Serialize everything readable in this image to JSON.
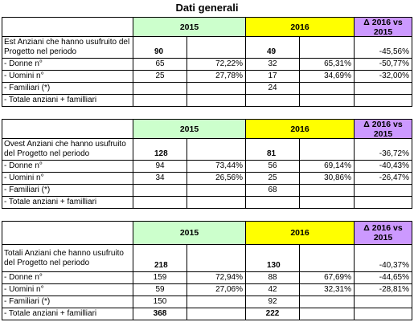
{
  "title": "Dati generali",
  "blocks": [
    {
      "header": {
        "y2015": "2015",
        "y2016": "2016",
        "delta": "Δ 2016 vs 2015"
      },
      "rows": [
        {
          "label": "Est Anziani che hanno usufruito del Progetto nel periodo",
          "v2015": "90",
          "v2016": "49",
          "delta": "-45,56%"
        },
        {
          "label": "- Donne n°",
          "v2015": "65",
          "p2015": "72,22%",
          "v2016": "32",
          "p2016": "65,31%",
          "delta": "-50,77%"
        },
        {
          "label": "- Uomini n°",
          "v2015": "25",
          "p2015": "27,78%",
          "v2016": "17",
          "p2016": "34,69%",
          "delta": "-32,00%"
        },
        {
          "label": "- Familiari (*)",
          "v2016": "24"
        },
        {
          "label": "- Totale anziani + familliari"
        }
      ]
    },
    {
      "header": {
        "y2015": "2015",
        "y2016": "2016",
        "delta": "Δ 2016 vs 2015"
      },
      "rows": [
        {
          "label": "Ovest Anziani che hanno usufruito del Progetto nel periodo",
          "v2015": "128",
          "v2016": "81",
          "delta": "-36,72%"
        },
        {
          "label": "- Donne n°",
          "v2015": "94",
          "p2015": "73,44%",
          "v2016": "56",
          "p2016": "69,14%",
          "delta": "-40,43%"
        },
        {
          "label": "- Uomini n°",
          "v2015": "34",
          "p2015": "26,56%",
          "v2016": "25",
          "p2016": "30,86%",
          "delta": "-26,47%"
        },
        {
          "label": "- Familiari (*)",
          "v2016": "68"
        },
        {
          "label": "- Totale anziani + familliari"
        }
      ]
    },
    {
      "header": {
        "y2015": "2015",
        "y2016": "2016",
        "delta": "Δ 2016 vs 2015"
      },
      "rows": [
        {
          "label": "Totali Anziani che hanno usufruito del Progetto nel periodo",
          "v2015": "218",
          "v2016": "130",
          "delta": "-40,37%"
        },
        {
          "label": "- Donne n°",
          "v2015": "159",
          "p2015": "72,94%",
          "v2016": "88",
          "p2016": "67,69%",
          "delta": "-44,65%"
        },
        {
          "label": "- Uomini n°",
          "v2015": "59",
          "p2015": "27,06%",
          "v2016": "42",
          "p2016": "32,31%",
          "delta": "-28,81%"
        },
        {
          "label": "- Familiari (*)",
          "v2015": "150",
          "v2016": "92"
        },
        {
          "label": "- Totale anziani + familliari",
          "v2015": "368",
          "v2016": "222"
        }
      ]
    }
  ]
}
